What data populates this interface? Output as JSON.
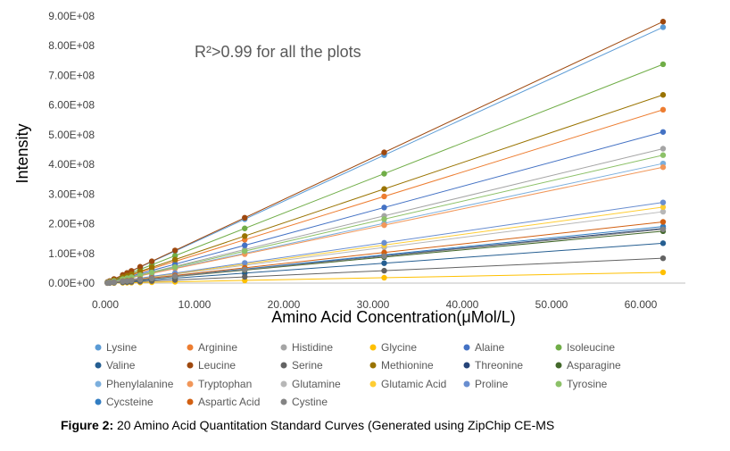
{
  "chart_data": {
    "type": "scatter",
    "annotation": "R²>0.99 for all the plots",
    "xlabel": "Amino Acid Concentration(μMol/L)",
    "ylabel": "Intensity",
    "xlim": [
      0,
      65
    ],
    "ylim": [
      0,
      900000000
    ],
    "x_ticks": [
      0,
      10,
      20,
      30,
      40,
      50,
      60
    ],
    "x_tick_labels": [
      "0.000",
      "10.000",
      "20.000",
      "30.000",
      "40.000",
      "50.000",
      "60.000"
    ],
    "y_ticks": [
      0,
      100000000,
      200000000,
      300000000,
      400000000,
      500000000,
      600000000,
      700000000,
      800000000,
      900000000
    ],
    "y_tick_labels": [
      "0.00E+00",
      "1.00E+08",
      "2.00E+08",
      "3.00E+08",
      "4.00E+08",
      "5.00E+08",
      "6.00E+08",
      "7.00E+08",
      "8.00E+08",
      "9.00E+08"
    ],
    "x": [
      0.244,
      0.488,
      0.977,
      1.953,
      2.441,
      2.93,
      3.906,
      5.21,
      7.813,
      15.625,
      31.25,
      62.5
    ],
    "grid": false,
    "legend_position": "bottom",
    "series": [
      {
        "name": "Lysine",
        "color": "#5b9bd5",
        "slope": 13800000
      },
      {
        "name": "Arginine",
        "color": "#ed7d31",
        "slope": 9350000
      },
      {
        "name": "Histidine",
        "color": "#a5a5a5",
        "slope": 7250000
      },
      {
        "name": "Glycine",
        "color": "#ffc000",
        "slope": 580000
      },
      {
        "name": "Alaine",
        "color": "#4472c4",
        "slope": 8150000
      },
      {
        "name": "Isoleucine",
        "color": "#70ad47",
        "slope": 11800000
      },
      {
        "name": "Valine",
        "color": "#255e91",
        "slope": 2150000
      },
      {
        "name": "Leucine",
        "color": "#9e480e",
        "slope": 14100000
      },
      {
        "name": "Serine",
        "color": "#636363",
        "slope": 1340000
      },
      {
        "name": "Methionine",
        "color": "#997300",
        "slope": 10150000
      },
      {
        "name": "Threonine",
        "color": "#264478",
        "slope": 2950000
      },
      {
        "name": "Asparagine",
        "color": "#43682b",
        "slope": 2800000
      },
      {
        "name": "Phenylalanine",
        "color": "#7cafdd",
        "slope": 6450000
      },
      {
        "name": "Tryptophan",
        "color": "#f1975a",
        "slope": 6250000
      },
      {
        "name": "Glutamine",
        "color": "#b7b7b7",
        "slope": 3850000
      },
      {
        "name": "Glutamic Acid",
        "color": "#ffcd33",
        "slope": 4100000
      },
      {
        "name": "Proline",
        "color": "#698ed0",
        "slope": 4350000
      },
      {
        "name": "Tyrosine",
        "color": "#8cc168",
        "slope": 6900000
      },
      {
        "name": "Cycsteine",
        "color": "#327dc2",
        "slope": 3050000
      },
      {
        "name": "Aspartic Acid",
        "color": "#d26012",
        "slope": 3300000
      },
      {
        "name": "Cystine",
        "color": "#848484",
        "slope": 2900000
      }
    ]
  },
  "caption": {
    "label": "Figure 2:",
    "text": " 20 Amino Acid Quantitation Standard Curves (Generated using ZipChip CE-MS"
  }
}
